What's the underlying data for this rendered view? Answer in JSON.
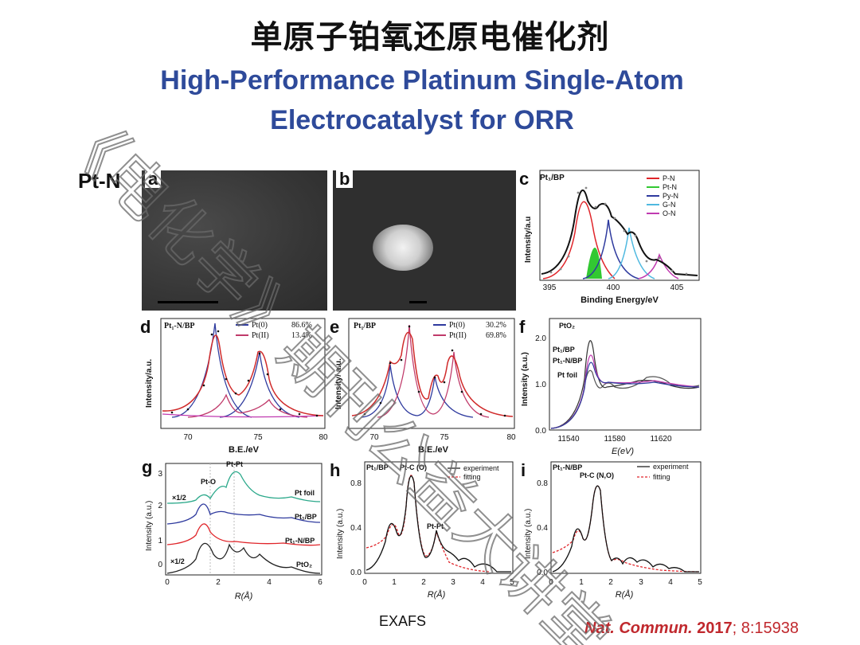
{
  "title_cn": "单原子铂氧还原电催化剂",
  "title_en_line1": "High-Performance Platinum Single-Atom",
  "title_en_line2": "Electrocatalyst for ORR",
  "section_label": "Pt-N",
  "caption": "EXAFS",
  "citation": {
    "journal": "Nat. Commun.",
    "year": "2017",
    "rest": "; 8:15938"
  },
  "watermark_text": "《电化学》期刊公益大讲堂",
  "colors": {
    "title_en": "#2e4a9a",
    "citation": "#c0282d"
  },
  "panels": {
    "a": {
      "label": "a"
    },
    "b": {
      "label": "b"
    },
    "c": {
      "label": "c",
      "sample": "Pt₁/BP",
      "xlabel": "Binding Energy/eV",
      "ylabel": "Intensity/a.u",
      "xticks": [
        "395",
        "400",
        "405"
      ],
      "legend": [
        {
          "name": "P-N",
          "color": "#e0252a"
        },
        {
          "name": "Pt-N",
          "color": "#32c832"
        },
        {
          "name": "Py-N",
          "color": "#2e3a9e"
        },
        {
          "name": "G-N",
          "color": "#4fb9e0"
        },
        {
          "name": "O-N",
          "color": "#c03ab0"
        }
      ]
    },
    "d": {
      "label": "d",
      "sample": "Pt₁-N/BP",
      "xlabel": "B.E./eV",
      "ylabel": "Intensity/a.u.",
      "xticks": [
        "70",
        "75",
        "80"
      ],
      "legend": [
        {
          "name": "Pt(0)",
          "value": "86.6%",
          "color": "#2e3a9e"
        },
        {
          "name": "Pt(II)",
          "value": "13.4%",
          "color": "#c03a6a"
        }
      ]
    },
    "e": {
      "label": "e",
      "sample": "Pt₁/BP",
      "xlabel": "B.E./eV",
      "ylabel": "Intensity/ a.u.",
      "xticks": [
        "70",
        "75",
        "80"
      ],
      "legend": [
        {
          "name": "Pt(0)",
          "value": "30.2%",
          "color": "#2e3a9e"
        },
        {
          "name": "Pt(II)",
          "value": "69.8%",
          "color": "#c03a6a"
        }
      ]
    },
    "f": {
      "label": "f",
      "xlabel": "E(eV)",
      "ylabel": "Intensity (a.u.)",
      "xticks": [
        "11540",
        "11580",
        "11620"
      ],
      "yticks": [
        "0.0",
        "1.0",
        "2.0"
      ],
      "labels": [
        "PtO₂",
        "Pt₁/BP",
        "Pt₁-N/BP",
        "Pt foil"
      ]
    },
    "g": {
      "label": "g",
      "xlabel": "R(Å)",
      "ylabel": "Intensity (a.u.)",
      "xticks": [
        "0",
        "2",
        "4",
        "6"
      ],
      "yticks": [
        "0",
        "1",
        "2",
        "3"
      ],
      "labels": [
        "Pt-O",
        "Pt-Pt",
        "×1/2",
        "×1/2",
        "Pt foil",
        "Pt₁/BP",
        "Pt₁-N/BP",
        "PtO₂"
      ]
    },
    "h": {
      "label": "h",
      "sample": "Pt₁/BP",
      "xlabel": "R(Å)",
      "ylabel": "Intensity (a.u.)",
      "xticks": [
        "0",
        "1",
        "2",
        "3",
        "4",
        "5"
      ],
      "yticks": [
        "0.0",
        "0.4",
        "0.8"
      ],
      "peaks": [
        "Pt-C (O)",
        "Pt-Pt"
      ],
      "legend": [
        {
          "name": "experiment"
        },
        {
          "name": "fitting"
        }
      ]
    },
    "i": {
      "label": "i",
      "sample": "Pt₁-N/BP",
      "xlabel": "R(Å)",
      "ylabel": "Intensity (a.u.)",
      "xticks": [
        "0",
        "1",
        "2",
        "3",
        "4",
        "5"
      ],
      "yticks": [
        "0.0",
        "0.4",
        "0.8"
      ],
      "peaks": [
        "Pt-C (N,O)"
      ],
      "legend": [
        {
          "name": "experiment"
        },
        {
          "name": "fitting"
        }
      ]
    }
  }
}
